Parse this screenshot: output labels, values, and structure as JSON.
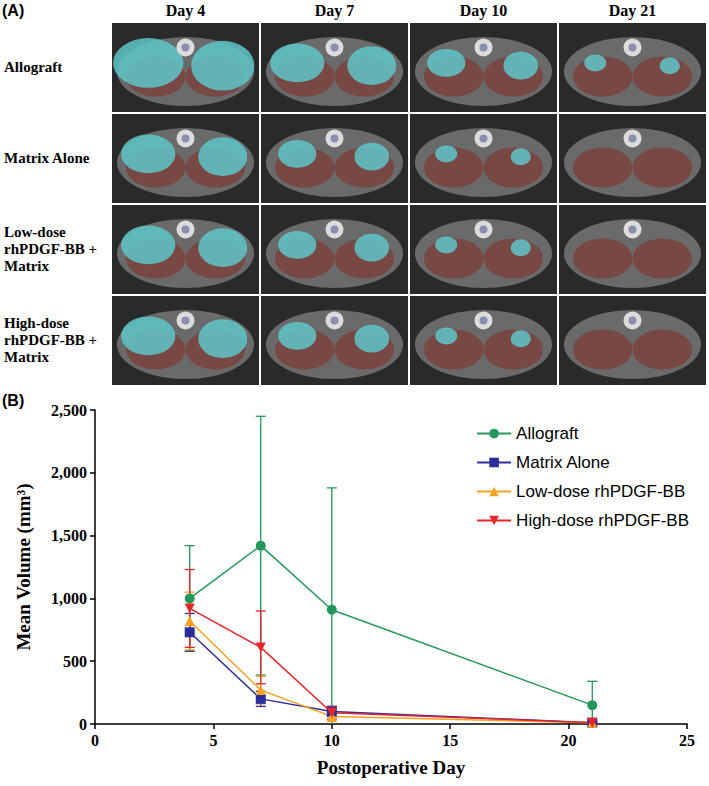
{
  "panel_labels": [
    "(A)",
    "(B)"
  ],
  "images": {
    "columns": [
      "Day 4",
      "Day 7",
      "Day 10",
      "Day 21"
    ],
    "rows": [
      "Allograft",
      "Matrix Alone",
      "Low-dose rhPDGF-BB + Matrix",
      "High-dose rhPDGF-BB + Matrix"
    ]
  },
  "chart_data": {
    "type": "line",
    "x_label": "Postoperative Day",
    "y_label": "Mean Volume (mm³)",
    "x": [
      4,
      7,
      10,
      21
    ],
    "series": [
      {
        "name": "Allograft",
        "color": "#23985a",
        "marker": "circle",
        "values": [
          1000,
          1420,
          910,
          150
        ],
        "errors": [
          420,
          1030,
          970,
          190
        ]
      },
      {
        "name": "Matrix Alone",
        "color": "#2b2d9c",
        "marker": "square",
        "values": [
          730,
          200,
          100,
          10
        ],
        "errors": [
          150,
          60,
          40,
          10
        ]
      },
      {
        "name": "Low-dose rhPDGF-BB",
        "color": "#f5a122",
        "marker": "triangle",
        "values": [
          820,
          270,
          60,
          10
        ],
        "errors": [
          230,
          110,
          40,
          10
        ]
      },
      {
        "name": "High-dose rhPDGF-BB",
        "color": "#e5262b",
        "marker": "triangle_down",
        "values": [
          920,
          610,
          90,
          10
        ],
        "errors": [
          310,
          290,
          50,
          10
        ]
      }
    ],
    "xlim": [
      0,
      25
    ],
    "xticks": [
      0,
      5,
      10,
      15,
      20,
      25
    ],
    "ylim": [
      0,
      2500
    ],
    "yticks": [
      0,
      500,
      1000,
      1500,
      2000,
      2500
    ],
    "grid": false,
    "legend": "top-right"
  }
}
